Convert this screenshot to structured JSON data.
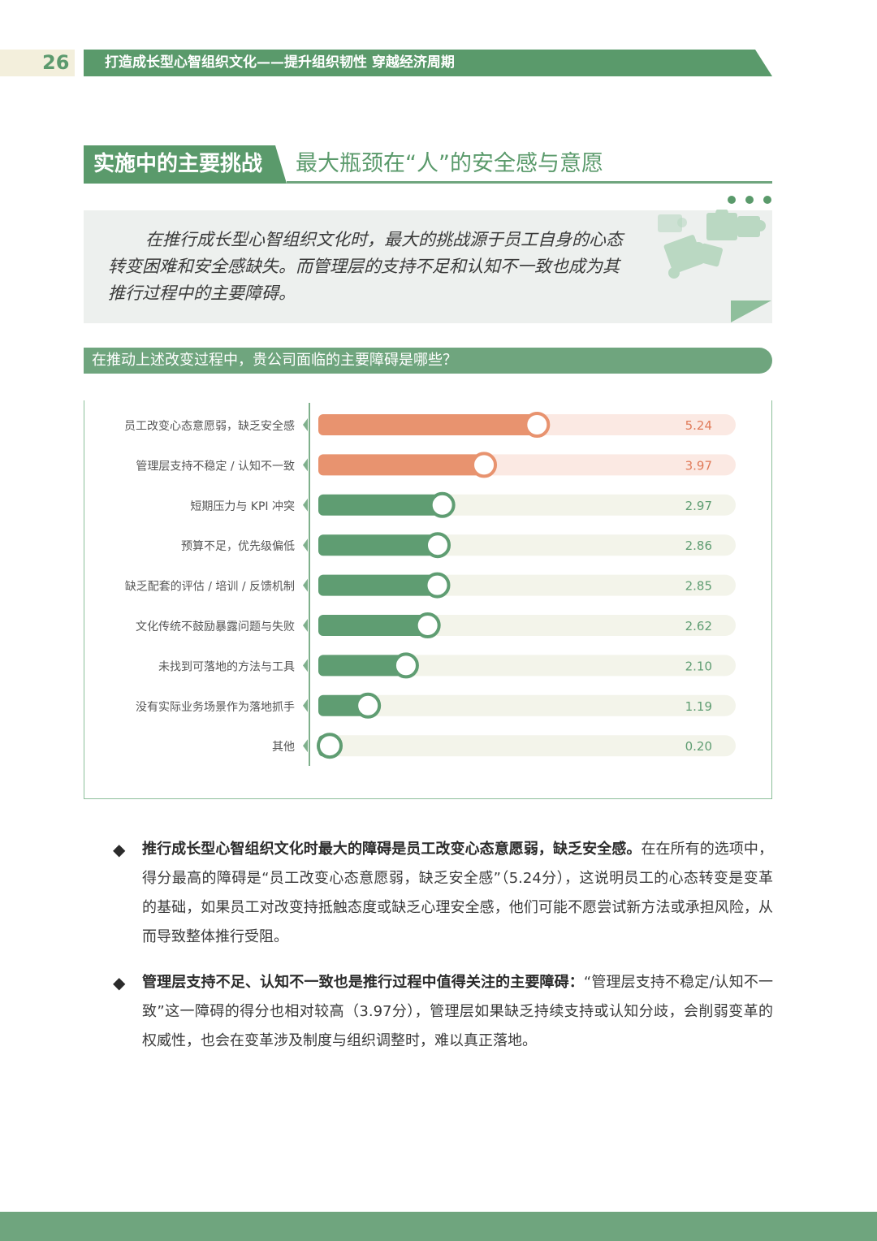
{
  "header": {
    "page_number": "26",
    "title": "打造成长型心智组织文化——提升组织韧性 穿越经济周期"
  },
  "section": {
    "tag": "实施中的主要挑战",
    "subtitle": "最大瓶颈在“人”的安全感与意愿"
  },
  "intro": {
    "text": "在推行成长型心智组织文化时，最大的挑战源于员工自身的心态转变困难和安全感缺失。而管理层的支持不足和认知不一致也成为其推行过程中的主要障碍。"
  },
  "question": "在推动上述改变过程中，贵公司面临的主要障碍是哪些？",
  "chart_data": {
    "type": "bar",
    "orientation": "horizontal",
    "categories": [
      "员工改变心态意愿弱，缺乏安全感",
      "管理层支持不稳定 / 认知不一致",
      "短期压力与 KPI 冲突",
      "预算不足，优先级偏低",
      "缺乏配套的评估 / 培训 / 反馈机制",
      "文化传统不鼓励暴露问题与失败",
      "未找到可落地的方法与工具",
      "没有实际业务场景作为落地抓手",
      "其他"
    ],
    "values": [
      5.24,
      3.97,
      2.97,
      2.86,
      2.85,
      2.62,
      2.1,
      1.19,
      0.2
    ],
    "value_labels": [
      "5.24",
      "3.97",
      "2.97",
      "2.86",
      "2.85",
      "2.62",
      "2.10",
      "1.19",
      "0.20"
    ],
    "highlight_count": 2,
    "xlim": [
      0,
      10
    ],
    "colors": {
      "highlight_bar": "#e8936f",
      "highlight_track": "#fbe9e3",
      "highlight_text": "#e07a58",
      "normal_bar": "#5f9d72",
      "normal_track": "#f3f4ea",
      "normal_text": "#5f9d72"
    }
  },
  "findings": [
    {
      "lead": "推行成长型心智组织文化时最大的障碍是员工改变心态意愿弱，缺乏安全感。",
      "body": "在在所有的选项中，得分最高的障碍是“员工改变心态意愿弱，缺乏安全感”（5.24分），这说明员工的心态转变是变革的基础，如果员工对改变持抵触态度或缺乏心理安全感，他们可能不愿尝试新方法或承担风险，从而导致整体推行受阻。"
    },
    {
      "lead": "管理层支持不足、认知不一致也是推行过程中值得关注的主要障碍：",
      "body": "“管理层支持不稳定/认知不一致”这一障碍的得分也相对较高（3.97分），管理层如果缺乏持续支持或认知分歧，会削弱变革的权威性，也会在变革涉及制度与组织调整时，难以真正落地。"
    }
  ]
}
